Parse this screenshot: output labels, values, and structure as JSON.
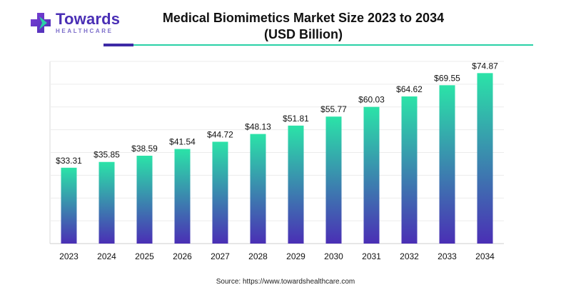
{
  "brand": {
    "name": "Towards",
    "sub": "HEALTHCARE",
    "colors": {
      "primary": "#4a2fb5",
      "accent": "#2ad1a6"
    }
  },
  "title_line1": "Medical Biomimetics Market Size 2023 to 2034",
  "title_line2": "(USD Billion)",
  "source": "Source: https://www.towardshealthcare.com",
  "chart_data": {
    "type": "bar",
    "categories": [
      "2023",
      "2024",
      "2025",
      "2026",
      "2027",
      "2028",
      "2029",
      "2030",
      "2031",
      "2032",
      "2033",
      "2034"
    ],
    "values": [
      33.31,
      35.85,
      38.59,
      41.54,
      44.72,
      48.13,
      51.81,
      55.77,
      60.03,
      64.62,
      69.55,
      74.87
    ],
    "data_labels": [
      "$33.31",
      "$35.85",
      "$38.59",
      "$41.54",
      "$44.72",
      "$48.13",
      "$51.81",
      "$55.77",
      "$60.03",
      "$64.62",
      "$69.55",
      "$74.87"
    ],
    "ylim": [
      0,
      80
    ],
    "grid": true,
    "legend": "none",
    "bar_gradient": {
      "top": "#2be3a8",
      "bottom": "#4a2fb5"
    }
  }
}
